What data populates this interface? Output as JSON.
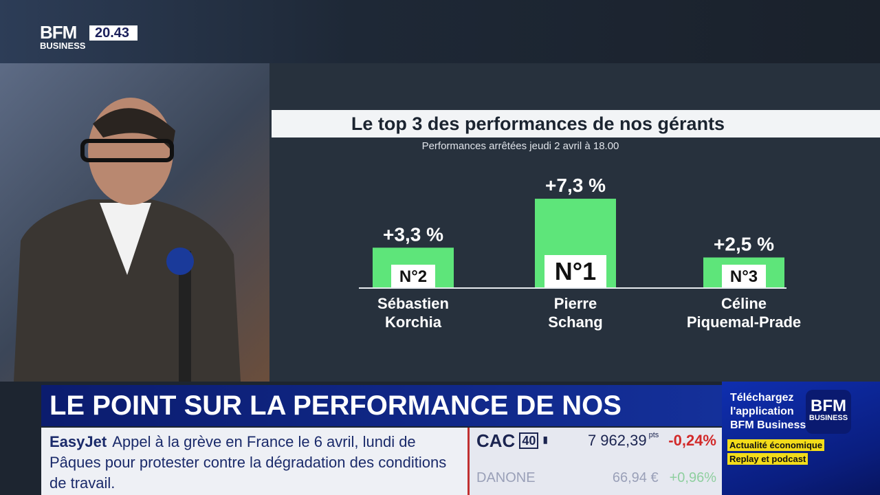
{
  "channel": {
    "logo_top": "BFM",
    "logo_bottom": "BUSINESS",
    "time": "20.43"
  },
  "chart_data": {
    "type": "bar",
    "title": "Le top 3 des performances de nos gérants",
    "subtitle": "Performances arrêtées jeudi 2 avril à 18.00",
    "categories": [
      "Sébastien Korchia",
      "Pierre Schang",
      "Céline Piquemal-Prade"
    ],
    "name_lines": [
      [
        "Sébastien",
        "Korchia"
      ],
      [
        "Pierre",
        "Schang"
      ],
      [
        "Céline",
        "Piquemal-Prade"
      ]
    ],
    "values": [
      3.3,
      7.3,
      2.5
    ],
    "value_labels": [
      "+3,3 %",
      "+7,3 %",
      "+2,5 %"
    ],
    "rank_labels": [
      "N°2",
      "N°1",
      "N°3"
    ],
    "bar_color": "#5ee57a",
    "unit": "%"
  },
  "lower_third": {
    "headline": "LE POINT SUR LA PERFORMANCE DE NOS GÉRANTS"
  },
  "ticker": {
    "source": "EasyJet",
    "text": "Appel à la grève en France le 6 avril, lundi de Pâques pour protester contre la dégradation des conditions de travail."
  },
  "market": {
    "index": "CAC",
    "index_num": "40",
    "value": "7 962,39",
    "unit": "pts",
    "change": "-0,24%",
    "next_name": "DANONE",
    "next_value": "66,94 €",
    "next_change": "+0,96%",
    "down_color": "#d22a2a",
    "up_color": "#3aa65a"
  },
  "promo": {
    "line1": "Téléchargez",
    "line2": "l'application",
    "line3": "BFM Business",
    "logo_top": "BFM",
    "logo_bottom": "BUSINESS",
    "tag1": "Actualité économique",
    "tag2": "Replay et podcast"
  }
}
